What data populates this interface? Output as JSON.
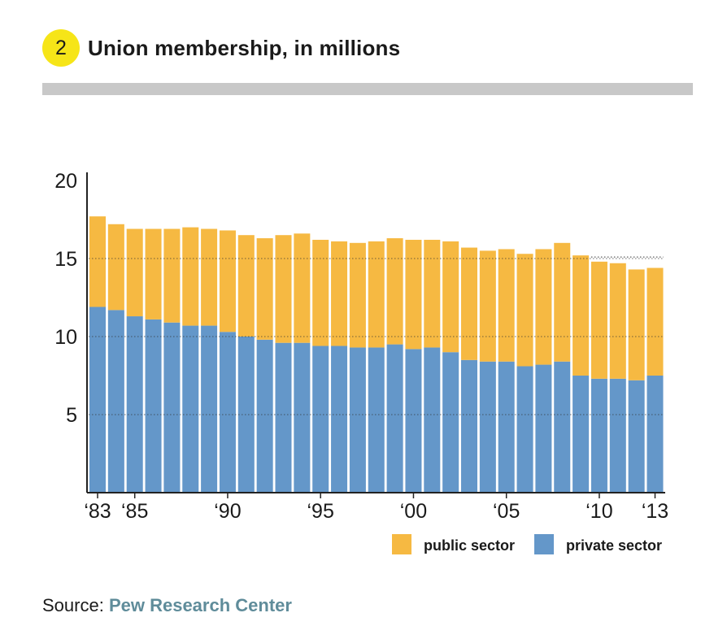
{
  "header": {
    "number": "2",
    "title": "Union membership, in millions"
  },
  "source": {
    "label": "Source:",
    "link_text": "Pew Research Center"
  },
  "colors": {
    "public_sector": "#f6b942",
    "private_sector": "#6497c9",
    "badge": "#f6e518",
    "rule": "#c8c8c8",
    "source_link": "#5f8c9a"
  },
  "chart_data": {
    "type": "bar",
    "stacked": true,
    "categories": [
      "1983",
      "1984",
      "1985",
      "1986",
      "1987",
      "1988",
      "1989",
      "1990",
      "1991",
      "1992",
      "1993",
      "1994",
      "1995",
      "1996",
      "1997",
      "1998",
      "1999",
      "2000",
      "2001",
      "2002",
      "2003",
      "2004",
      "2005",
      "2006",
      "2007",
      "2008",
      "2009",
      "2010",
      "2011",
      "2012",
      "2013"
    ],
    "x_tick_labels": [
      {
        "category": "1983",
        "label": "‘83"
      },
      {
        "category": "1985",
        "label": "‘85"
      },
      {
        "category": "1990",
        "label": "‘90"
      },
      {
        "category": "1995",
        "label": "‘95"
      },
      {
        "category": "2000",
        "label": "‘00"
      },
      {
        "category": "2005",
        "label": "‘05"
      },
      {
        "category": "2010",
        "label": "‘10"
      },
      {
        "category": "2013",
        "label": "‘13"
      }
    ],
    "series": [
      {
        "name": "private sector",
        "color": "#6497c9",
        "values": [
          11.9,
          11.7,
          11.3,
          11.1,
          10.9,
          10.7,
          10.7,
          10.3,
          10.0,
          9.8,
          9.6,
          9.6,
          9.4,
          9.4,
          9.3,
          9.3,
          9.5,
          9.2,
          9.3,
          9.0,
          8.5,
          8.4,
          8.4,
          8.1,
          8.2,
          8.4,
          7.5,
          7.3,
          7.3,
          7.2,
          7.5
        ]
      },
      {
        "name": "public sector",
        "color": "#f6b942",
        "values": [
          5.8,
          5.5,
          5.6,
          5.8,
          6.0,
          6.3,
          6.2,
          6.5,
          6.5,
          6.5,
          6.9,
          7.0,
          6.8,
          6.7,
          6.7,
          6.8,
          6.8,
          7.0,
          6.9,
          7.1,
          7.2,
          7.1,
          7.2,
          7.2,
          7.4,
          7.6,
          7.7,
          7.5,
          7.4,
          7.1,
          6.9
        ]
      }
    ],
    "y_ticks": [
      5,
      10,
      15,
      20
    ],
    "ylim": [
      0,
      20
    ],
    "reference_line": {
      "value": 15.1,
      "from_category": "2010",
      "to_category": "2013",
      "style": "dotted"
    },
    "grid": true,
    "legend_position": "bottom-right",
    "title": "Union membership, in millions",
    "xlabel": "",
    "ylabel": ""
  }
}
